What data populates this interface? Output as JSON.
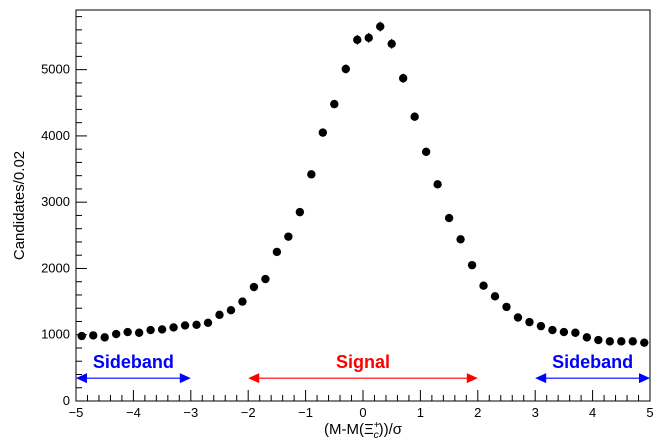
{
  "chart_data": {
    "type": "scatter",
    "xlabel": "(M-M(Ξc+))/σ",
    "xlabel_parts": {
      "main": "(M-M(Ξ",
      "sup": "+",
      "sub": "c",
      "tail": "))/σ"
    },
    "ylabel": "Candidates/0.02",
    "xlim": [
      -5,
      5
    ],
    "ylim": [
      0,
      5900
    ],
    "x_ticks": [
      -5,
      -4,
      -3,
      -2,
      -1,
      0,
      1,
      2,
      3,
      4,
      5
    ],
    "x_tick_labels": [
      "−5",
      "−4",
      "−3",
      "−2",
      "−1",
      "0",
      "1",
      "2",
      "3",
      "4",
      "5"
    ],
    "y_ticks": [
      0,
      1000,
      2000,
      3000,
      4000,
      5000
    ],
    "y_tick_labels": [
      "0",
      "1000",
      "2000",
      "3000",
      "4000",
      "5000"
    ],
    "grid": false,
    "series": [
      {
        "marker": "circle",
        "color": "#000000",
        "x": [
          -4.9,
          -4.7,
          -4.5,
          -4.3,
          -4.1,
          -3.9,
          -3.7,
          -3.5,
          -3.3,
          -3.1,
          -2.9,
          -2.7,
          -2.5,
          -2.3,
          -2.1,
          -1.9,
          -1.7,
          -1.5,
          -1.3,
          -1.1,
          -0.9,
          -0.7,
          -0.5,
          -0.3,
          -0.1,
          0.1,
          0.3,
          0.5,
          0.7,
          0.9,
          1.1,
          1.3,
          1.5,
          1.7,
          1.9,
          2.1,
          2.3,
          2.5,
          2.7,
          2.9,
          3.1,
          3.3,
          3.5,
          3.7,
          3.9,
          4.1,
          4.3,
          4.5,
          4.7,
          4.9
        ],
        "y": [
          980,
          990,
          960,
          1010,
          1040,
          1030,
          1070,
          1080,
          1110,
          1140,
          1150,
          1180,
          1300,
          1370,
          1500,
          1720,
          1840,
          2250,
          2480,
          2850,
          3420,
          4050,
          4480,
          5010,
          5450,
          5480,
          5650,
          5390,
          4870,
          4290,
          3760,
          3270,
          2760,
          2440,
          2050,
          1740,
          1580,
          1420,
          1260,
          1190,
          1130,
          1070,
          1040,
          1030,
          960,
          920,
          900,
          900,
          900,
          880
        ],
        "yerr": [
          30,
          30,
          30,
          30,
          30,
          30,
          30,
          30,
          30,
          30,
          30,
          30,
          35,
          35,
          35,
          40,
          40,
          45,
          45,
          50,
          55,
          60,
          65,
          70,
          75,
          75,
          75,
          75,
          70,
          65,
          60,
          55,
          50,
          50,
          45,
          40,
          40,
          35,
          35,
          35,
          30,
          30,
          30,
          30,
          30,
          30,
          30,
          30,
          30,
          30
        ]
      }
    ],
    "annotations": [
      {
        "label": "Sideband",
        "color": "#0000ff",
        "x_from": -5,
        "x_to": -3,
        "y": 420
      },
      {
        "label": "Signal",
        "color": "#ff0000",
        "x_from": -2,
        "x_to": 2,
        "y": 420
      },
      {
        "label": "Sideband",
        "color": "#0000ff",
        "x_from": 3,
        "x_to": 5,
        "y": 420
      }
    ]
  }
}
